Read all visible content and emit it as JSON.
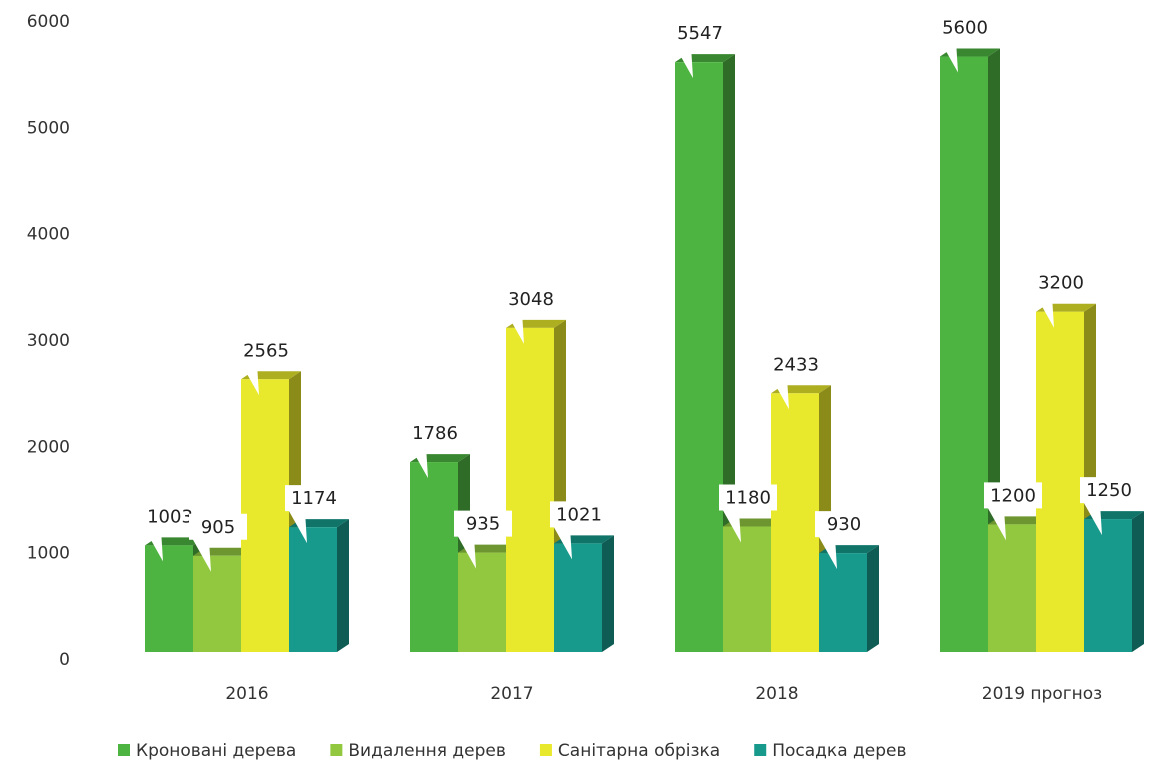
{
  "chart_data": {
    "type": "bar3d",
    "categories": [
      "2016",
      "2017",
      "2018",
      "2019 прогноз"
    ],
    "series": [
      {
        "name": "Кроновані дерева",
        "color": "#4db441",
        "values": [
          1003,
          1786,
          5547,
          5600
        ]
      },
      {
        "name": "Видалення дерев",
        "color": "#92c840",
        "values": [
          905,
          935,
          1180,
          1200
        ]
      },
      {
        "name": "Санітарна обрізка",
        "color": "#e8e82c",
        "values": [
          2565,
          3048,
          2433,
          3200
        ]
      },
      {
        "name": "Посадка дерев",
        "color": "#179a8c",
        "values": [
          1174,
          1021,
          930,
          1250
        ]
      }
    ],
    "ylim": [
      0,
      6000
    ],
    "yticks": [
      0,
      1000,
      2000,
      3000,
      4000,
      5000,
      6000
    ],
    "grid": false,
    "legend": "bottom"
  }
}
